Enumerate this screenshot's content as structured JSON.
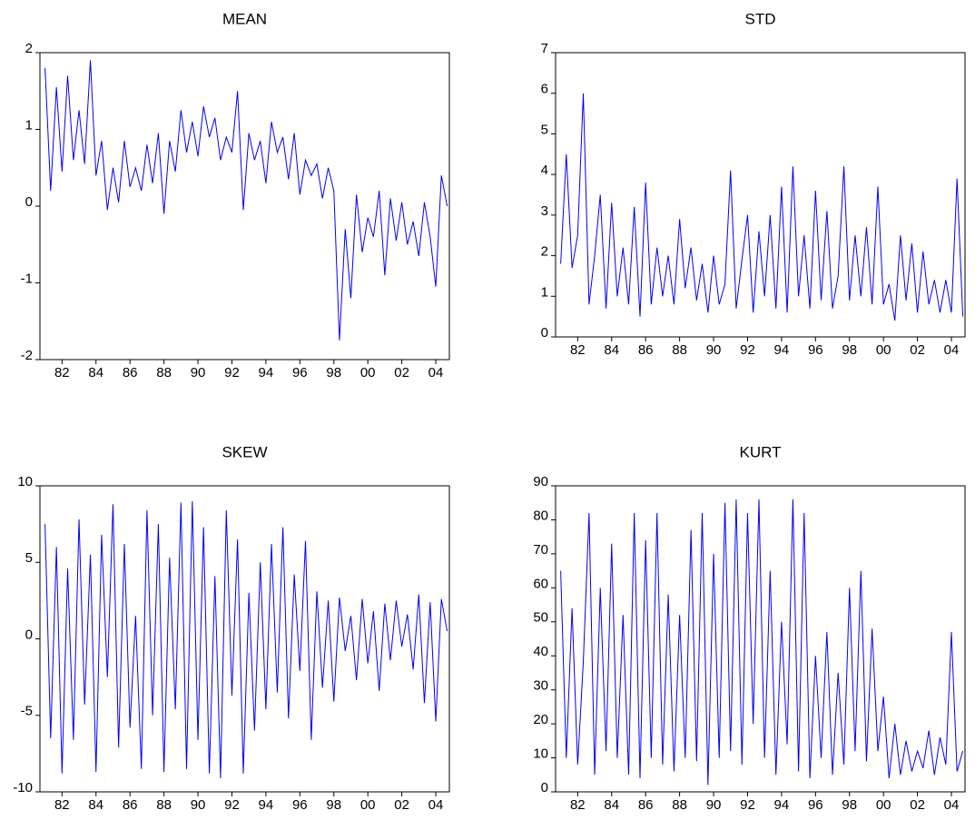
{
  "chart_data": [
    {
      "type": "line",
      "title": "MEAN",
      "color": "#0000ff",
      "x": [
        1981,
        1981.33,
        1981.67,
        1982,
        1982.33,
        1982.67,
        1983,
        1983.33,
        1983.67,
        1984,
        1984.33,
        1984.67,
        1985,
        1985.33,
        1985.67,
        1986,
        1986.33,
        1986.67,
        1987,
        1987.33,
        1987.67,
        1988,
        1988.33,
        1988.67,
        1989,
        1989.33,
        1989.67,
        1990,
        1990.33,
        1990.67,
        1991,
        1991.33,
        1991.67,
        1992,
        1992.33,
        1992.67,
        1993,
        1993.33,
        1993.67,
        1994,
        1994.33,
        1994.67,
        1995,
        1995.33,
        1995.67,
        1996,
        1996.33,
        1996.67,
        1997,
        1997.33,
        1997.67,
        1998,
        1998.33,
        1998.67,
        1999,
        1999.33,
        1999.67,
        2000,
        2000.33,
        2000.67,
        2001,
        2001.33,
        2001.67,
        2002,
        2002.33,
        2002.67,
        2003,
        2003.33,
        2003.67,
        2004,
        2004.33,
        2004.67
      ],
      "values": [
        1.8,
        0.2,
        1.55,
        0.45,
        1.7,
        0.6,
        1.25,
        0.55,
        1.9,
        0.4,
        0.85,
        -0.05,
        0.5,
        0.05,
        0.85,
        0.25,
        0.5,
        0.2,
        0.8,
        0.3,
        0.95,
        -0.1,
        0.85,
        0.45,
        1.25,
        0.7,
        1.1,
        0.65,
        1.3,
        0.9,
        1.15,
        0.6,
        0.9,
        0.7,
        1.5,
        -0.05,
        0.95,
        0.6,
        0.85,
        0.3,
        1.1,
        0.7,
        0.9,
        0.35,
        0.95,
        0.15,
        0.6,
        0.4,
        0.55,
        0.1,
        0.5,
        0.2,
        -1.75,
        -0.3,
        -1.2,
        0.15,
        -0.6,
        -0.15,
        -0.4,
        0.2,
        -0.9,
        0.1,
        -0.45,
        0.05,
        -0.5,
        -0.2,
        -0.65,
        0.05,
        -0.4,
        -1.05,
        0.4,
        0.0
      ],
      "xlim": [
        1980.7,
        2004.8
      ],
      "xticks": [
        {
          "value": 1982,
          "label": "82"
        },
        {
          "value": 1984,
          "label": "84"
        },
        {
          "value": 1986,
          "label": "86"
        },
        {
          "value": 1988,
          "label": "88"
        },
        {
          "value": 1990,
          "label": "90"
        },
        {
          "value": 1992,
          "label": "92"
        },
        {
          "value": 1994,
          "label": "94"
        },
        {
          "value": 1996,
          "label": "96"
        },
        {
          "value": 1998,
          "label": "98"
        },
        {
          "value": 2000,
          "label": "00"
        },
        {
          "value": 2002,
          "label": "02"
        },
        {
          "value": 2004,
          "label": "04"
        }
      ],
      "ylim": [
        -2,
        2
      ],
      "yticks": [
        -2,
        -1,
        0,
        1,
        2
      ]
    },
    {
      "type": "line",
      "title": "STD",
      "color": "#0000ff",
      "x": [
        1981,
        1981.33,
        1981.67,
        1982,
        1982.33,
        1982.67,
        1983,
        1983.33,
        1983.67,
        1984,
        1984.33,
        1984.67,
        1985,
        1985.33,
        1985.67,
        1986,
        1986.33,
        1986.67,
        1987,
        1987.33,
        1987.67,
        1988,
        1988.33,
        1988.67,
        1989,
        1989.33,
        1989.67,
        1990,
        1990.33,
        1990.67,
        1991,
        1991.33,
        1991.67,
        1992,
        1992.33,
        1992.67,
        1993,
        1993.33,
        1993.67,
        1994,
        1994.33,
        1994.67,
        1995,
        1995.33,
        1995.67,
        1996,
        1996.33,
        1996.67,
        1997,
        1997.33,
        1997.67,
        1998,
        1998.33,
        1998.67,
        1999,
        1999.33,
        1999.67,
        2000,
        2000.33,
        2000.67,
        2001,
        2001.33,
        2001.67,
        2002,
        2002.33,
        2002.67,
        2003,
        2003.33,
        2003.67,
        2004,
        2004.33,
        2004.67
      ],
      "values": [
        1.8,
        4.5,
        1.7,
        2.5,
        6.0,
        0.8,
        2.0,
        3.5,
        0.7,
        3.3,
        1.0,
        2.2,
        0.8,
        3.2,
        0.5,
        3.8,
        0.8,
        2.2,
        1.0,
        2.0,
        0.8,
        2.9,
        1.2,
        2.2,
        0.9,
        1.8,
        0.6,
        2.0,
        0.8,
        1.3,
        4.1,
        0.7,
        1.9,
        3.0,
        0.6,
        2.6,
        1.0,
        3.0,
        0.7,
        3.7,
        0.6,
        4.2,
        1.0,
        2.5,
        0.7,
        3.6,
        0.9,
        3.1,
        0.7,
        1.5,
        4.2,
        0.9,
        2.5,
        1.0,
        2.7,
        0.8,
        3.7,
        0.8,
        1.3,
        0.4,
        2.5,
        0.9,
        2.3,
        0.6,
        2.1,
        0.8,
        1.4,
        0.6,
        1.4,
        0.6,
        3.9,
        0.5
      ],
      "xlim": [
        1980.7,
        2004.8
      ],
      "xticks": [
        {
          "value": 1982,
          "label": "82"
        },
        {
          "value": 1984,
          "label": "84"
        },
        {
          "value": 1986,
          "label": "86"
        },
        {
          "value": 1988,
          "label": "88"
        },
        {
          "value": 1990,
          "label": "90"
        },
        {
          "value": 1992,
          "label": "92"
        },
        {
          "value": 1994,
          "label": "94"
        },
        {
          "value": 1996,
          "label": "96"
        },
        {
          "value": 1998,
          "label": "98"
        },
        {
          "value": 2000,
          "label": "00"
        },
        {
          "value": 2002,
          "label": "02"
        },
        {
          "value": 2004,
          "label": "04"
        }
      ],
      "ylim": [
        0,
        7
      ],
      "yticks": [
        0,
        1,
        2,
        3,
        4,
        5,
        6,
        7
      ]
    },
    {
      "type": "line",
      "title": "SKEW",
      "color": "#0000ff",
      "x": [
        1981,
        1981.33,
        1981.67,
        1982,
        1982.33,
        1982.67,
        1983,
        1983.33,
        1983.67,
        1984,
        1984.33,
        1984.67,
        1985,
        1985.33,
        1985.67,
        1986,
        1986.33,
        1986.67,
        1987,
        1987.33,
        1987.67,
        1988,
        1988.33,
        1988.67,
        1989,
        1989.33,
        1989.67,
        1990,
        1990.33,
        1990.67,
        1991,
        1991.33,
        1991.67,
        1992,
        1992.33,
        1992.67,
        1993,
        1993.33,
        1993.67,
        1994,
        1994.33,
        1994.67,
        1995,
        1995.33,
        1995.67,
        1996,
        1996.33,
        1996.67,
        1997,
        1997.33,
        1997.67,
        1998,
        1998.33,
        1998.67,
        1999,
        1999.33,
        1999.67,
        2000,
        2000.33,
        2000.67,
        2001,
        2001.33,
        2001.67,
        2002,
        2002.33,
        2002.67,
        2003,
        2003.33,
        2003.67,
        2004,
        2004.33,
        2004.67
      ],
      "values": [
        7.5,
        -6.5,
        6,
        -8.8,
        4.6,
        -6.6,
        7.8,
        -4.3,
        5.5,
        -8.7,
        6.8,
        -2.5,
        8.8,
        -7.1,
        6.2,
        -5.8,
        1.5,
        -8.5,
        8.4,
        -5,
        7.5,
        -8.7,
        5.3,
        -4.6,
        8.9,
        -8.5,
        9,
        -6.6,
        7.3,
        -8.8,
        4.1,
        -9.1,
        8.4,
        -3.7,
        6.5,
        -8.8,
        3,
        -6,
        5,
        -4.6,
        6.2,
        -3.5,
        7.3,
        -5.2,
        4.2,
        -2.1,
        6.4,
        -6.6,
        3.1,
        -3.2,
        2.5,
        -4.1,
        2.7,
        -0.8,
        1.5,
        -2.7,
        2.6,
        -1.6,
        1.8,
        -3.4,
        2.3,
        -1.4,
        2.5,
        -0.5,
        1.6,
        -2,
        2.9,
        -4.2,
        2.4,
        -5.4,
        2.6,
        0.5
      ],
      "xlim": [
        1980.7,
        2004.8
      ],
      "xticks": [
        {
          "value": 1982,
          "label": "82"
        },
        {
          "value": 1984,
          "label": "84"
        },
        {
          "value": 1986,
          "label": "86"
        },
        {
          "value": 1988,
          "label": "88"
        },
        {
          "value": 1990,
          "label": "90"
        },
        {
          "value": 1992,
          "label": "92"
        },
        {
          "value": 1994,
          "label": "94"
        },
        {
          "value": 1996,
          "label": "96"
        },
        {
          "value": 1998,
          "label": "98"
        },
        {
          "value": 2000,
          "label": "00"
        },
        {
          "value": 2002,
          "label": "02"
        },
        {
          "value": 2004,
          "label": "04"
        }
      ],
      "ylim": [
        -10,
        10
      ],
      "yticks": [
        -10,
        -5,
        0,
        5,
        10
      ]
    },
    {
      "type": "line",
      "title": "KURT",
      "color": "#0000ff",
      "x": [
        1981,
        1981.33,
        1981.67,
        1982,
        1982.33,
        1982.67,
        1983,
        1983.33,
        1983.67,
        1984,
        1984.33,
        1984.67,
        1985,
        1985.33,
        1985.67,
        1986,
        1986.33,
        1986.67,
        1987,
        1987.33,
        1987.67,
        1988,
        1988.33,
        1988.67,
        1989,
        1989.33,
        1989.67,
        1990,
        1990.33,
        1990.67,
        1991,
        1991.33,
        1991.67,
        1992,
        1992.33,
        1992.67,
        1993,
        1993.33,
        1993.67,
        1994,
        1994.33,
        1994.67,
        1995,
        1995.33,
        1995.67,
        1996,
        1996.33,
        1996.67,
        1997,
        1997.33,
        1997.67,
        1998,
        1998.33,
        1998.67,
        1999,
        1999.33,
        1999.67,
        2000,
        2000.33,
        2000.67,
        2001,
        2001.33,
        2001.67,
        2002,
        2002.33,
        2002.67,
        2003,
        2003.33,
        2003.67,
        2004,
        2004.33,
        2004.67
      ],
      "values": [
        65,
        10,
        54,
        8,
        38,
        82,
        5,
        60,
        12,
        73,
        10,
        52,
        5,
        82,
        4,
        74,
        10,
        82,
        8,
        58,
        6,
        52,
        10,
        77,
        9,
        82,
        2,
        70,
        10,
        85,
        12,
        86,
        8,
        82,
        20,
        86,
        10,
        65,
        5,
        50,
        14,
        86,
        6,
        82,
        4,
        40,
        10,
        47,
        5,
        35,
        8,
        60,
        12,
        65,
        9,
        48,
        12,
        28,
        4,
        20,
        5,
        15,
        6,
        12,
        7,
        18,
        5,
        16,
        8,
        47,
        6,
        12
      ],
      "xlim": [
        1980.7,
        2004.8
      ],
      "xticks": [
        {
          "value": 1982,
          "label": "82"
        },
        {
          "value": 1984,
          "label": "84"
        },
        {
          "value": 1986,
          "label": "86"
        },
        {
          "value": 1988,
          "label": "88"
        },
        {
          "value": 1990,
          "label": "90"
        },
        {
          "value": 1992,
          "label": "92"
        },
        {
          "value": 1994,
          "label": "94"
        },
        {
          "value": 1996,
          "label": "96"
        },
        {
          "value": 1998,
          "label": "98"
        },
        {
          "value": 2000,
          "label": "00"
        },
        {
          "value": 2002,
          "label": "02"
        },
        {
          "value": 2004,
          "label": "04"
        }
      ],
      "ylim": [
        0,
        90
      ],
      "yticks": [
        0,
        10,
        20,
        30,
        40,
        50,
        60,
        70,
        80,
        90
      ]
    }
  ]
}
